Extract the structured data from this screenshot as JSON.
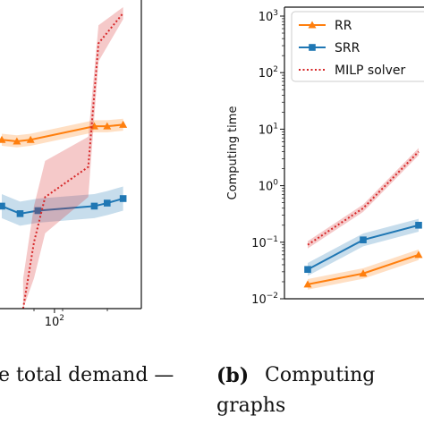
{
  "chart_data": [
    {
      "type": "line",
      "title": "",
      "xscale": "log",
      "xlabel": "",
      "ylabel": "",
      "x_ticks": [
        {
          "value": 100,
          "base": "10",
          "exp": "2"
        }
      ],
      "xlim": [
        40,
        400
      ],
      "ylim": [
        0,
        1
      ],
      "legend": "none",
      "series": [
        {
          "color": "#ff7f0e",
          "marker": "triangle",
          "x": [
            40,
            52,
            66,
            200,
            250,
            330
          ],
          "y": [
            0.56,
            0.555,
            0.56,
            0.605,
            0.605,
            0.61
          ],
          "band": [
            0.02,
            0.02,
            0.02,
            0.02,
            0.02,
            0.02
          ]
        },
        {
          "color": "#1f77b4",
          "marker": "square",
          "x": [
            40,
            55,
            75,
            200,
            250,
            330
          ],
          "y": [
            0.34,
            0.315,
            0.325,
            0.34,
            0.35,
            0.365
          ],
          "band": [
            0.04,
            0.04,
            0.04,
            0.04,
            0.04,
            0.04
          ]
        },
        {
          "color": "#d62728",
          "style": "dotted",
          "x": [
            58,
            70,
            85,
            180,
            215,
            330
          ],
          "y": [
            0.0,
            0.22,
            0.37,
            0.47,
            0.88,
            0.98
          ],
          "band": [
            0.1,
            0.12,
            0.12,
            0.1,
            0.06,
            0.02
          ]
        }
      ]
    },
    {
      "type": "line",
      "title": "",
      "yscale": "log",
      "xlabel": "",
      "ylabel": "Computing time",
      "ylim": [
        0.01,
        1000
      ],
      "y_ticks": [
        {
          "value": 0.01,
          "base": "10",
          "exp": "−2"
        },
        {
          "value": 0.1,
          "base": "10",
          "exp": "−1"
        },
        {
          "value": 1,
          "base": "10",
          "exp": "0"
        },
        {
          "value": 10,
          "base": "10",
          "exp": "1"
        },
        {
          "value": 100,
          "base": "10",
          "exp": "2"
        },
        {
          "value": 1000,
          "base": "10",
          "exp": "3"
        }
      ],
      "legend": "top-left",
      "series": [
        {
          "name": "RR",
          "color": "#ff7f0e",
          "marker": "triangle",
          "x": [
            1,
            2,
            3
          ],
          "y": [
            0.018,
            0.028,
            0.06
          ],
          "band": [
            0.12,
            0.12,
            0.12
          ]
        },
        {
          "name": "SRR",
          "color": "#1f77b4",
          "marker": "square",
          "x": [
            1,
            2,
            3
          ],
          "y": [
            0.033,
            0.11,
            0.2
          ],
          "band": [
            0.15,
            0.15,
            0.15
          ]
        },
        {
          "name": "MILP solver",
          "color": "#d62728",
          "style": "dotted",
          "x": [
            1,
            2,
            3
          ],
          "y": [
            0.09,
            0.4,
            4.0
          ],
          "band": [
            0.08,
            0.08,
            0.08
          ]
        }
      ]
    }
  ],
  "captions": {
    "left_text": "e total demand —",
    "right_label": "(b)",
    "right_text": "Computing",
    "right_line2": "graphs"
  }
}
